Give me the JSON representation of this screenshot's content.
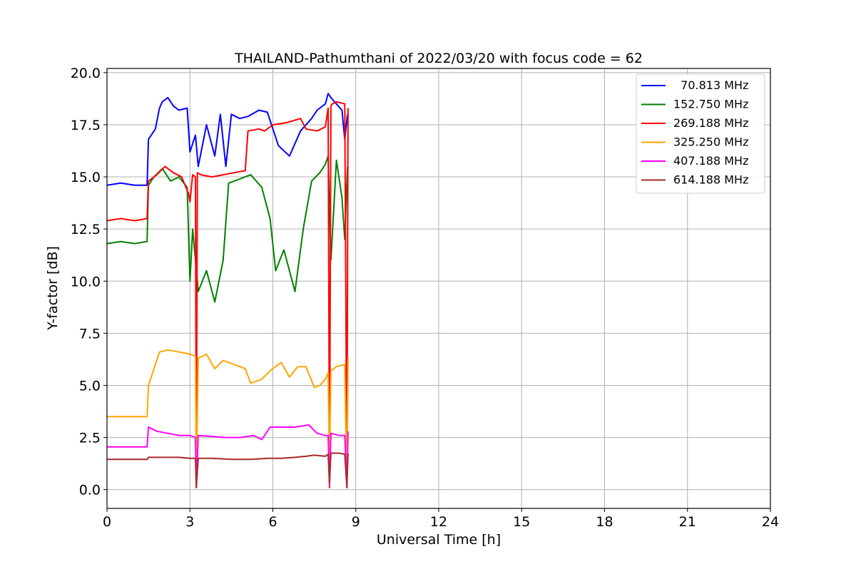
{
  "chart_data": {
    "type": "line",
    "title": "THAILAND-Pathumthani of 2022/03/20 with focus code = 62",
    "xlabel": "Universal Time [h]",
    "ylabel": "Y-factor [dB]",
    "xlim": [
      0,
      24
    ],
    "ylim": [
      -0.9,
      20.2
    ],
    "xticks": [
      0,
      3,
      6,
      9,
      12,
      15,
      18,
      21,
      24
    ],
    "xtick_labels": [
      "0",
      "3",
      "6",
      "9",
      "12",
      "15",
      "18",
      "21",
      "24"
    ],
    "yticks": [
      0.0,
      2.5,
      5.0,
      7.5,
      10.0,
      12.5,
      15.0,
      17.5,
      20.0
    ],
    "ytick_labels": [
      "0.0",
      "2.5",
      "5.0",
      "7.5",
      "10.0",
      "12.5",
      "15.0",
      "17.5",
      "20.0"
    ],
    "grid": true,
    "legend_position": "top-right",
    "series": [
      {
        "name": "  70.813 MHz",
        "color": "#0000ff",
        "x": [
          0,
          0.5,
          1.0,
          1.45,
          1.5,
          1.6,
          1.75,
          1.9,
          2.0,
          2.2,
          2.4,
          2.6,
          2.9,
          3.0,
          3.2,
          3.3,
          3.6,
          3.9,
          4.1,
          4.3,
          4.5,
          4.8,
          5.1,
          5.5,
          5.8,
          6.2,
          6.6,
          7.0,
          7.4,
          7.6,
          7.9,
          8.0,
          8.1,
          8.3,
          8.5,
          8.6,
          8.7
        ],
        "y": [
          14.6,
          14.7,
          14.6,
          14.6,
          16.8,
          17.0,
          17.3,
          18.3,
          18.6,
          18.8,
          18.4,
          18.2,
          18.3,
          16.2,
          17.0,
          15.5,
          17.5,
          16.0,
          18.0,
          15.5,
          18.0,
          17.8,
          17.9,
          18.2,
          18.1,
          16.5,
          16.0,
          17.2,
          17.8,
          18.2,
          18.5,
          19.0,
          18.8,
          18.5,
          18.2,
          16.8,
          18.0
        ]
      },
      {
        "name": "152.750 MHz",
        "color": "#008000",
        "x": [
          0,
          0.5,
          1.0,
          1.45,
          1.5,
          1.7,
          2.0,
          2.3,
          2.6,
          2.9,
          3.0,
          3.1,
          3.3,
          3.6,
          3.9,
          4.2,
          4.4,
          4.8,
          5.2,
          5.6,
          5.9,
          6.1,
          6.4,
          6.8,
          7.1,
          7.4,
          7.7,
          7.9,
          8.0,
          8.1,
          8.3,
          8.5,
          8.6,
          8.7
        ],
        "y": [
          11.8,
          11.9,
          11.8,
          11.9,
          14.6,
          15.0,
          15.4,
          14.8,
          15.0,
          14.5,
          10.0,
          12.5,
          9.5,
          10.5,
          9.0,
          11.0,
          14.7,
          14.9,
          15.1,
          14.5,
          13.0,
          10.5,
          11.5,
          9.5,
          12.5,
          14.8,
          15.2,
          15.6,
          16.0,
          11.0,
          15.8,
          14.0,
          12.0,
          15.5
        ]
      },
      {
        "name": "269.188 MHz",
        "color": "#ff0000",
        "x": [
          0,
          0.5,
          1.0,
          1.45,
          1.5,
          1.8,
          2.1,
          2.4,
          2.7,
          2.95,
          3.0,
          3.1,
          3.2,
          3.23,
          3.27,
          3.4,
          3.8,
          4.2,
          4.6,
          5.0,
          5.1,
          5.5,
          5.7,
          6.0,
          6.5,
          7.0,
          7.2,
          7.6,
          7.9,
          8.0,
          8.05,
          8.1,
          8.15,
          8.3,
          8.6,
          8.68,
          8.72
        ],
        "y": [
          12.9,
          13.0,
          12.9,
          13.0,
          14.8,
          15.1,
          15.5,
          15.2,
          15.0,
          14.2,
          13.8,
          15.1,
          15.0,
          0.1,
          15.2,
          15.1,
          15.0,
          15.1,
          15.2,
          15.3,
          17.2,
          17.3,
          17.2,
          17.5,
          17.6,
          17.8,
          17.3,
          17.2,
          17.4,
          18.3,
          0.1,
          18.4,
          18.5,
          18.6,
          18.5,
          0.1,
          18.3
        ]
      },
      {
        "name": "325.250 MHz",
        "color": "#ffa500",
        "x": [
          0,
          0.5,
          1.0,
          1.45,
          1.5,
          1.7,
          1.9,
          2.2,
          2.6,
          3.0,
          3.2,
          3.23,
          3.3,
          3.6,
          3.9,
          4.2,
          4.6,
          5.0,
          5.2,
          5.6,
          5.9,
          6.3,
          6.6,
          6.9,
          7.2,
          7.5,
          7.7,
          7.9,
          8.0,
          8.05,
          8.1,
          8.3,
          8.6,
          8.68,
          8.72
        ],
        "y": [
          3.5,
          3.5,
          3.5,
          3.5,
          5.0,
          5.8,
          6.6,
          6.7,
          6.6,
          6.5,
          6.4,
          0.1,
          6.3,
          6.5,
          5.8,
          6.2,
          6.0,
          5.8,
          5.1,
          5.3,
          5.7,
          6.1,
          5.4,
          5.9,
          5.9,
          4.9,
          5.0,
          5.3,
          5.6,
          1.0,
          5.7,
          5.9,
          6.0,
          0.1,
          6.3
        ]
      },
      {
        "name": "407.188 MHz",
        "color": "#ff00ff",
        "x": [
          0,
          0.5,
          1.0,
          1.45,
          1.5,
          1.8,
          2.2,
          2.6,
          3.0,
          3.2,
          3.23,
          3.3,
          3.8,
          4.3,
          4.8,
          5.3,
          5.6,
          5.9,
          6.3,
          6.8,
          7.3,
          7.6,
          7.9,
          8.0,
          8.05,
          8.1,
          8.4,
          8.6,
          8.68,
          8.72
        ],
        "y": [
          2.05,
          2.05,
          2.05,
          2.05,
          3.0,
          2.8,
          2.7,
          2.6,
          2.6,
          2.5,
          0.1,
          2.6,
          2.55,
          2.5,
          2.5,
          2.6,
          2.4,
          3.0,
          3.0,
          3.0,
          3.1,
          2.7,
          2.6,
          2.6,
          0.2,
          2.7,
          2.6,
          2.6,
          0.1,
          2.8
        ]
      },
      {
        "name": "614.188 MHz",
        "color": "#a52a2a",
        "x": [
          0,
          0.5,
          1.0,
          1.45,
          1.5,
          2.0,
          2.6,
          3.0,
          3.2,
          3.23,
          3.3,
          3.8,
          4.5,
          5.2,
          5.8,
          6.3,
          6.8,
          7.2,
          7.5,
          7.9,
          8.0,
          8.05,
          8.1,
          8.4,
          8.6,
          8.68,
          8.72
        ],
        "y": [
          1.45,
          1.45,
          1.45,
          1.45,
          1.55,
          1.55,
          1.55,
          1.5,
          1.5,
          0.1,
          1.5,
          1.5,
          1.45,
          1.45,
          1.5,
          1.5,
          1.55,
          1.6,
          1.65,
          1.6,
          1.7,
          0.3,
          1.75,
          1.75,
          1.7,
          0.1,
          1.75
        ]
      }
    ]
  }
}
